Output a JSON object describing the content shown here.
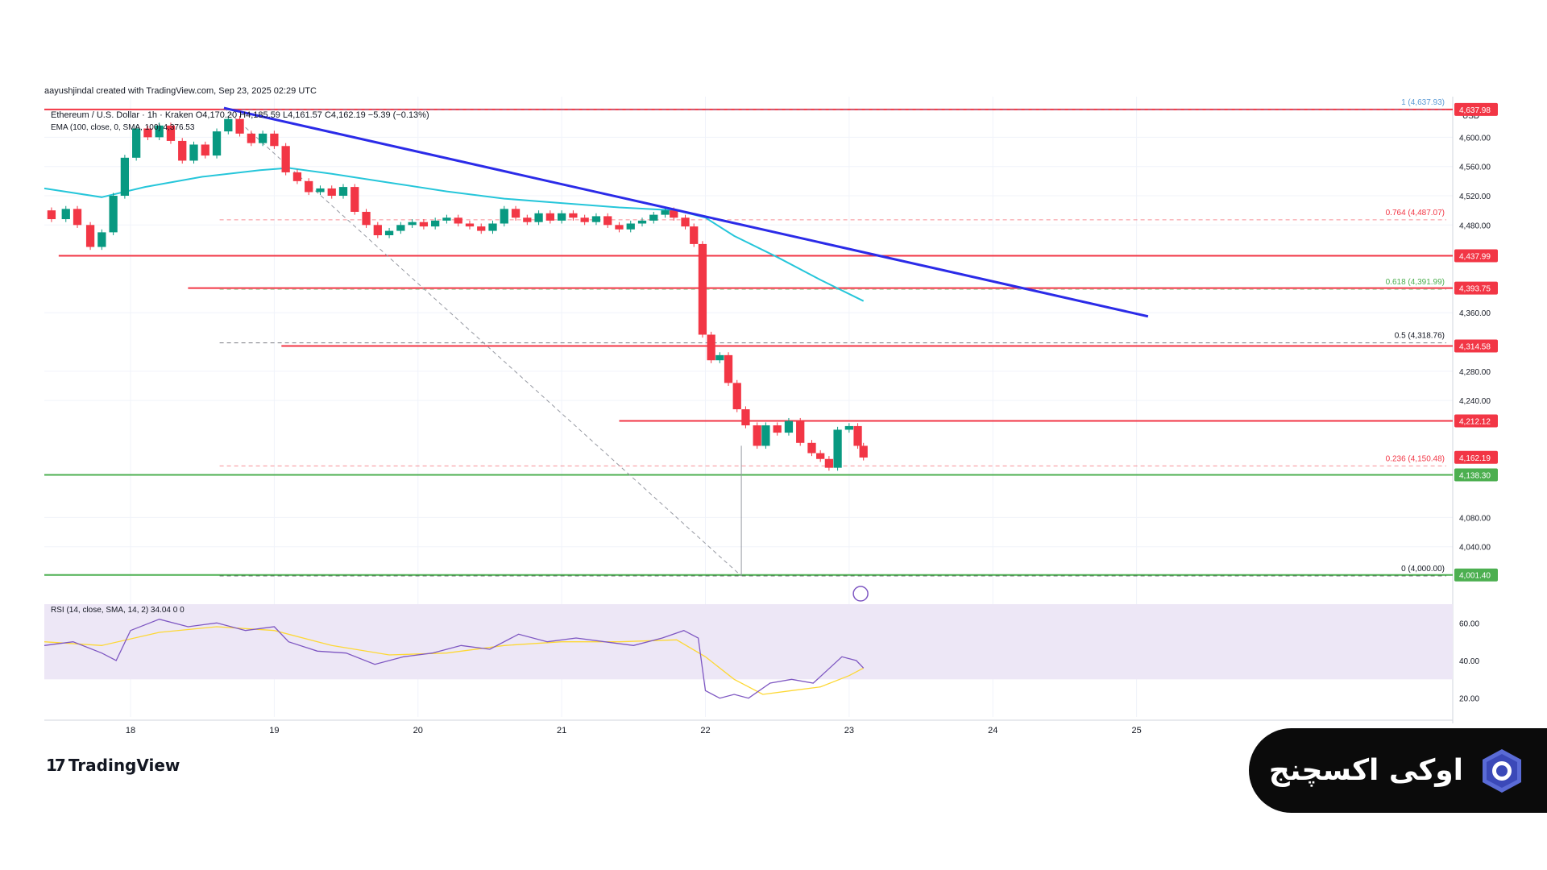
{
  "header": {
    "credit": "aayushjindal created with TradingView.com, Sep 23, 2025 02:29 UTC"
  },
  "chart_data": {
    "type": "candlestick",
    "legend": {
      "line1": "Ethereum / U.S. Dollar · 1h · Kraken  O4,170.20  H4,185.59  L4,161.57  C4,162.19  −5.39 (−0.13%)",
      "line2": "EMA (100, close, 0, SMA, 100)  4,376.53"
    },
    "currency": "USD",
    "ylim": [
      4000,
      4650
    ],
    "y_ticks": [
      {
        "v": 4600,
        "label": "4,600.00"
      },
      {
        "v": 4560,
        "label": "4,560.00"
      },
      {
        "v": 4520,
        "label": "4,520.00"
      },
      {
        "v": 4480,
        "label": "4,480.00"
      },
      {
        "v": 4360,
        "label": "4,360.00"
      },
      {
        "v": 4280,
        "label": "4,280.00"
      },
      {
        "v": 4240,
        "label": "4,240.00"
      },
      {
        "v": 4080,
        "label": "4,080.00"
      },
      {
        "v": 4040,
        "label": "4,040.00"
      }
    ],
    "x_ticks": [
      "18",
      "19",
      "20",
      "21",
      "22",
      "23",
      "24",
      "25"
    ],
    "x_domain": [
      17.4,
      27.2
    ],
    "price_badges": [
      {
        "label": "4,637.98",
        "v": 4637.98,
        "color": "#f23645"
      },
      {
        "label": "4,437.99",
        "v": 4437.99,
        "color": "#f23645"
      },
      {
        "label": "4,393.75",
        "v": 4393.75,
        "color": "#f23645"
      },
      {
        "label": "4,314.58",
        "v": 4314.58,
        "color": "#f23645"
      },
      {
        "label": "4,212.12",
        "v": 4212.12,
        "color": "#f23645"
      },
      {
        "label": "4,162.19",
        "v": 4162.19,
        "color": "#f23645"
      },
      {
        "label": "4,138.30",
        "v": 4138.3,
        "color": "#4caf50"
      },
      {
        "label": "4,001.40",
        "v": 4001.4,
        "color": "#4caf50"
      }
    ],
    "horizontal_levels": [
      {
        "v": 4637.98,
        "x_start": 17.4,
        "color": "#f23645"
      },
      {
        "v": 4437.99,
        "x_start": 17.5,
        "color": "#f23645"
      },
      {
        "v": 4393.75,
        "x_start": 18.4,
        "color": "#f23645"
      },
      {
        "v": 4314.58,
        "x_start": 19.05,
        "color": "#f23645"
      },
      {
        "v": 4212.12,
        "x_start": 21.4,
        "color": "#f23645"
      },
      {
        "v": 4138.3,
        "x_start": 17.4,
        "color": "#4caf50"
      },
      {
        "v": 4001.4,
        "x_start": 17.4,
        "color": "#4caf50"
      }
    ],
    "fib_levels": [
      {
        "label": "1 (4,637.93)",
        "v": 4637.93,
        "color": "#5b9bd5"
      },
      {
        "label": "0.764 (4,487.07)",
        "v": 4487.07,
        "color": "#f23645"
      },
      {
        "label": "0.618 (4,391.99)",
        "v": 4391.99,
        "color": "#4caf50"
      },
      {
        "label": "0.5 (4,318.76)",
        "v": 4318.76,
        "color": "#131722"
      },
      {
        "label": "0.236 (4,150.48)",
        "v": 4150.48,
        "color": "#f23645"
      },
      {
        "label": "0 (4,000.00)",
        "v": 4000.0,
        "color": "#131722"
      }
    ],
    "trendline": {
      "x": [
        18.65,
        25.08
      ],
      "y": [
        4640,
        4355
      ],
      "color": "#2b2be8"
    },
    "fib_diagonal": {
      "x": [
        18.65,
        22.25
      ],
      "y": [
        4640,
        4000
      ]
    },
    "ema_line": [
      [
        17.4,
        4530
      ],
      [
        17.8,
        4518
      ],
      [
        18.1,
        4532
      ],
      [
        18.5,
        4546
      ],
      [
        18.9,
        4555
      ],
      [
        19.1,
        4558
      ],
      [
        19.4,
        4550
      ],
      [
        19.8,
        4538
      ],
      [
        20.2,
        4526
      ],
      [
        20.6,
        4516
      ],
      [
        21.0,
        4510
      ],
      [
        21.4,
        4504
      ],
      [
        21.8,
        4500
      ],
      [
        22.0,
        4490
      ],
      [
        22.2,
        4465
      ],
      [
        22.5,
        4436
      ],
      [
        22.8,
        4405
      ],
      [
        23.1,
        4376
      ]
    ],
    "candles": [
      [
        17.45,
        4500,
        4488
      ],
      [
        17.55,
        4488,
        4502
      ],
      [
        17.63,
        4502,
        4480
      ],
      [
        17.72,
        4480,
        4450
      ],
      [
        17.8,
        4450,
        4470
      ],
      [
        17.88,
        4470,
        4520
      ],
      [
        17.96,
        4520,
        4572
      ],
      [
        18.04,
        4572,
        4612
      ],
      [
        18.12,
        4612,
        4600
      ],
      [
        18.2,
        4600,
        4616
      ],
      [
        18.28,
        4616,
        4595
      ],
      [
        18.36,
        4595,
        4568
      ],
      [
        18.44,
        4568,
        4590
      ],
      [
        18.52,
        4590,
        4575
      ],
      [
        18.6,
        4575,
        4608
      ],
      [
        18.68,
        4608,
        4625
      ],
      [
        18.76,
        4625,
        4605
      ],
      [
        18.84,
        4605,
        4592
      ],
      [
        18.92,
        4592,
        4605
      ],
      [
        19.0,
        4605,
        4588
      ],
      [
        19.08,
        4588,
        4552
      ],
      [
        19.16,
        4552,
        4540
      ],
      [
        19.24,
        4540,
        4525
      ],
      [
        19.32,
        4525,
        4530
      ],
      [
        19.4,
        4530,
        4520
      ],
      [
        19.48,
        4520,
        4532
      ],
      [
        19.56,
        4532,
        4498
      ],
      [
        19.64,
        4498,
        4480
      ],
      [
        19.72,
        4480,
        4466
      ],
      [
        19.8,
        4466,
        4472
      ],
      [
        19.88,
        4472,
        4480
      ],
      [
        19.96,
        4480,
        4484
      ],
      [
        20.04,
        4484,
        4478
      ],
      [
        20.12,
        4478,
        4486
      ],
      [
        20.2,
        4486,
        4490
      ],
      [
        20.28,
        4490,
        4482
      ],
      [
        20.36,
        4482,
        4478
      ],
      [
        20.44,
        4478,
        4472
      ],
      [
        20.52,
        4472,
        4482
      ],
      [
        20.6,
        4482,
        4502
      ],
      [
        20.68,
        4502,
        4490
      ],
      [
        20.76,
        4490,
        4484
      ],
      [
        20.84,
        4484,
        4496
      ],
      [
        20.92,
        4496,
        4486
      ],
      [
        21.0,
        4486,
        4496
      ],
      [
        21.08,
        4496,
        4490
      ],
      [
        21.16,
        4490,
        4484
      ],
      [
        21.24,
        4484,
        4492
      ],
      [
        21.32,
        4492,
        4480
      ],
      [
        21.4,
        4480,
        4474
      ],
      [
        21.48,
        4474,
        4482
      ],
      [
        21.56,
        4482,
        4486
      ],
      [
        21.64,
        4486,
        4494
      ],
      [
        21.72,
        4494,
        4500
      ],
      [
        21.78,
        4500,
        4490
      ],
      [
        21.86,
        4490,
        4478
      ],
      [
        21.92,
        4478,
        4454
      ],
      [
        21.98,
        4454,
        4330
      ],
      [
        22.04,
        4330,
        4295
      ],
      [
        22.1,
        4295,
        4302
      ],
      [
        22.16,
        4302,
        4264
      ],
      [
        22.22,
        4264,
        4228
      ],
      [
        22.28,
        4228,
        4206
      ],
      [
        22.36,
        4206,
        4178
      ],
      [
        22.42,
        4178,
        4206
      ],
      [
        22.5,
        4206,
        4196
      ],
      [
        22.58,
        4196,
        4212
      ],
      [
        22.66,
        4212,
        4182
      ],
      [
        22.74,
        4182,
        4168
      ],
      [
        22.8,
        4168,
        4160
      ],
      [
        22.86,
        4160,
        4148
      ],
      [
        22.92,
        4148,
        4200
      ],
      [
        23.0,
        4200,
        4205
      ],
      [
        23.06,
        4205,
        4178
      ],
      [
        23.1,
        4178,
        4162
      ]
    ],
    "rsi": {
      "label": "RSI (14, close, SMA, 14, 2)  34.04  0  0",
      "ylim": [
        10,
        70
      ],
      "band": [
        30,
        70
      ],
      "ticks": [
        {
          "v": 60,
          "label": "60.00"
        },
        {
          "v": 40,
          "label": "40.00"
        },
        {
          "v": 20,
          "label": "20.00"
        }
      ],
      "line": [
        [
          17.4,
          48
        ],
        [
          17.6,
          50
        ],
        [
          17.8,
          44
        ],
        [
          17.9,
          40
        ],
        [
          18.0,
          56
        ],
        [
          18.2,
          62
        ],
        [
          18.4,
          58
        ],
        [
          18.6,
          60
        ],
        [
          18.8,
          56
        ],
        [
          19.0,
          58
        ],
        [
          19.1,
          50
        ],
        [
          19.3,
          45
        ],
        [
          19.5,
          44
        ],
        [
          19.7,
          38
        ],
        [
          19.9,
          42
        ],
        [
          20.1,
          44
        ],
        [
          20.3,
          48
        ],
        [
          20.5,
          46
        ],
        [
          20.7,
          54
        ],
        [
          20.9,
          50
        ],
        [
          21.1,
          52
        ],
        [
          21.3,
          50
        ],
        [
          21.5,
          48
        ],
        [
          21.7,
          52
        ],
        [
          21.85,
          56
        ],
        [
          21.95,
          52
        ],
        [
          22.0,
          24
        ],
        [
          22.1,
          20
        ],
        [
          22.2,
          22
        ],
        [
          22.3,
          20
        ],
        [
          22.45,
          28
        ],
        [
          22.6,
          30
        ],
        [
          22.75,
          28
        ],
        [
          22.85,
          35
        ],
        [
          22.95,
          42
        ],
        [
          23.05,
          40
        ],
        [
          23.1,
          36
        ]
      ],
      "signal": [
        [
          17.4,
          50
        ],
        [
          17.8,
          48
        ],
        [
          18.2,
          55
        ],
        [
          18.6,
          58
        ],
        [
          19.0,
          56
        ],
        [
          19.4,
          48
        ],
        [
          19.8,
          43
        ],
        [
          20.2,
          44
        ],
        [
          20.6,
          48
        ],
        [
          21.0,
          50
        ],
        [
          21.4,
          50
        ],
        [
          21.8,
          51
        ],
        [
          22.0,
          42
        ],
        [
          22.2,
          30
        ],
        [
          22.4,
          22
        ],
        [
          22.6,
          24
        ],
        [
          22.8,
          26
        ],
        [
          23.0,
          32
        ],
        [
          23.1,
          36
        ]
      ]
    }
  },
  "branding": {
    "tradingview_mark": "17",
    "tradingview_name": "TradingView",
    "badge_text": "اوکی اکسچنج",
    "badge_logo_icon": "okex-hexagon-logo"
  },
  "colors": {
    "bull": "#089981",
    "bear": "#f23645",
    "grid": "#f0f3fa",
    "ema": "#26c6da",
    "rsi_line": "#7e57c2",
    "rsi_band": "#ede7f6",
    "rsi_signal": "#fdd835"
  }
}
